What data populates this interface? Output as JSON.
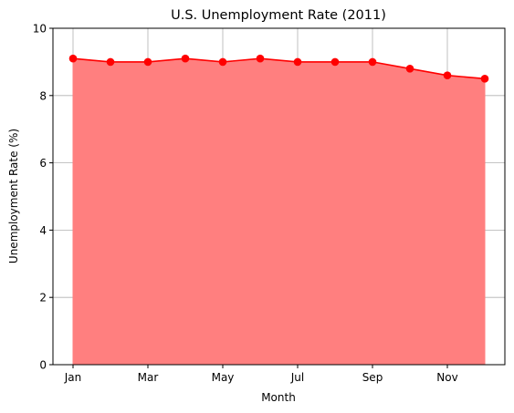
{
  "chart_data": {
    "type": "area",
    "title": "U.S. Unemployment Rate (2011)",
    "xlabel": "Month",
    "ylabel": "Unemployment Rate (%)",
    "ylim": [
      0,
      10
    ],
    "yticks": [
      "0",
      "2",
      "4",
      "6",
      "8",
      "10"
    ],
    "xtick_labels": [
      "Jan",
      "Mar",
      "May",
      "Jul",
      "Sep",
      "Nov"
    ],
    "grid": true,
    "categories": [
      "Jan",
      "Feb",
      "Mar",
      "Apr",
      "May",
      "Jun",
      "Jul",
      "Aug",
      "Sep",
      "Oct",
      "Nov",
      "Dec"
    ],
    "series": [
      {
        "values": [
          9.1,
          9.0,
          9.0,
          9.1,
          9.0,
          9.1,
          9.0,
          9.0,
          9.0,
          8.8,
          8.6,
          8.5
        ]
      }
    ],
    "colors": {
      "line": "#ff0000",
      "fill": "#ff7f7f",
      "grid": "#b0b0b0"
    }
  }
}
